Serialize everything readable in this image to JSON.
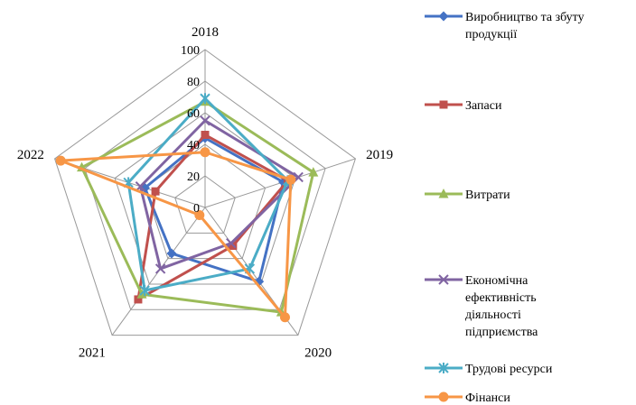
{
  "chart_data": {
    "type": "radar",
    "categories": [
      "2018",
      "2019",
      "2020",
      "2021",
      "2022"
    ],
    "rlim": [
      0,
      100
    ],
    "ticks": [
      "0",
      "20",
      "40",
      "60",
      "80",
      "100"
    ],
    "tick_values": [
      0,
      20,
      40,
      60,
      80,
      100
    ],
    "grid": true,
    "legend_position": "right",
    "series": [
      {
        "name": "Виробництво та збуту продукції",
        "color": "#4472C4",
        "marker": "diamond",
        "legend_lines": [
          "Виробництво та збуту",
          "продукції"
        ],
        "values": [
          44,
          52,
          58,
          36,
          40
        ]
      },
      {
        "name": "Запаси",
        "color": "#C0504D",
        "marker": "square",
        "legend_lines": [
          "Запаси"
        ],
        "values": [
          46,
          55,
          30,
          72,
          33
        ]
      },
      {
        "name": "Витрати",
        "color": "#9BBB59",
        "marker": "triangle",
        "legend_lines": [
          "Витрати"
        ],
        "values": [
          67,
          72,
          82,
          68,
          82
        ]
      },
      {
        "name": "Економічна ефективність діяльності підприємства",
        "color": "#8064A2",
        "marker": "x",
        "legend_lines": [
          "Економічна",
          "ефективність",
          "діяльності",
          "підприємства"
        ],
        "values": [
          55,
          62,
          28,
          48,
          43
        ]
      },
      {
        "name": "Трудові ресурси",
        "color": "#4BACC6",
        "marker": "star",
        "legend_lines": [
          "Трудові ресурси"
        ],
        "values": [
          69,
          55,
          48,
          65,
          51
        ]
      },
      {
        "name": "Фінанси",
        "color": "#F79646",
        "marker": "circle",
        "legend_lines": [
          "Фінанси"
        ],
        "values": [
          35,
          57,
          86,
          6,
          96
        ]
      }
    ]
  }
}
